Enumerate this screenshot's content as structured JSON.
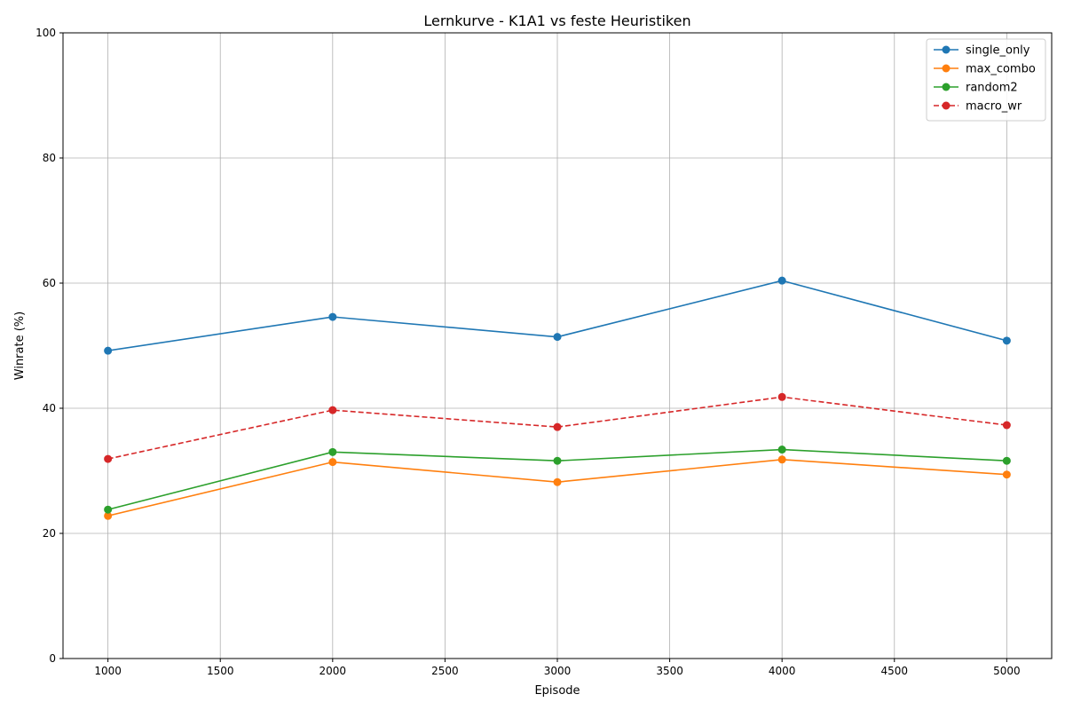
{
  "chart_data": {
    "type": "line",
    "title": "Lernkurve - K1A1 vs feste Heuristiken",
    "xlabel": "Episode",
    "ylabel": "Winrate (%)",
    "x": [
      1000,
      2000,
      3000,
      4000,
      5000
    ],
    "xlim": [
      800,
      5200
    ],
    "ylim": [
      0,
      100
    ],
    "xticks": [
      1000,
      1500,
      2000,
      2500,
      3000,
      3500,
      4000,
      4500,
      5000
    ],
    "yticks": [
      0,
      20,
      40,
      60,
      80,
      100
    ],
    "grid": true,
    "legend_position": "top-right",
    "series": [
      {
        "name": "single_only",
        "values": [
          49.2,
          54.6,
          51.4,
          60.4,
          50.8
        ],
        "color": "#1f77b4",
        "style": "solid"
      },
      {
        "name": "max_combo",
        "values": [
          22.8,
          31.4,
          28.2,
          31.8,
          29.4
        ],
        "color": "#ff7f0e",
        "style": "solid"
      },
      {
        "name": "random2",
        "values": [
          23.8,
          33.0,
          31.6,
          33.4,
          31.6
        ],
        "color": "#2ca02c",
        "style": "solid"
      },
      {
        "name": "macro_wr",
        "values": [
          31.9,
          39.7,
          37.0,
          41.8,
          37.3
        ],
        "color": "#d62728",
        "style": "dashed"
      }
    ]
  }
}
